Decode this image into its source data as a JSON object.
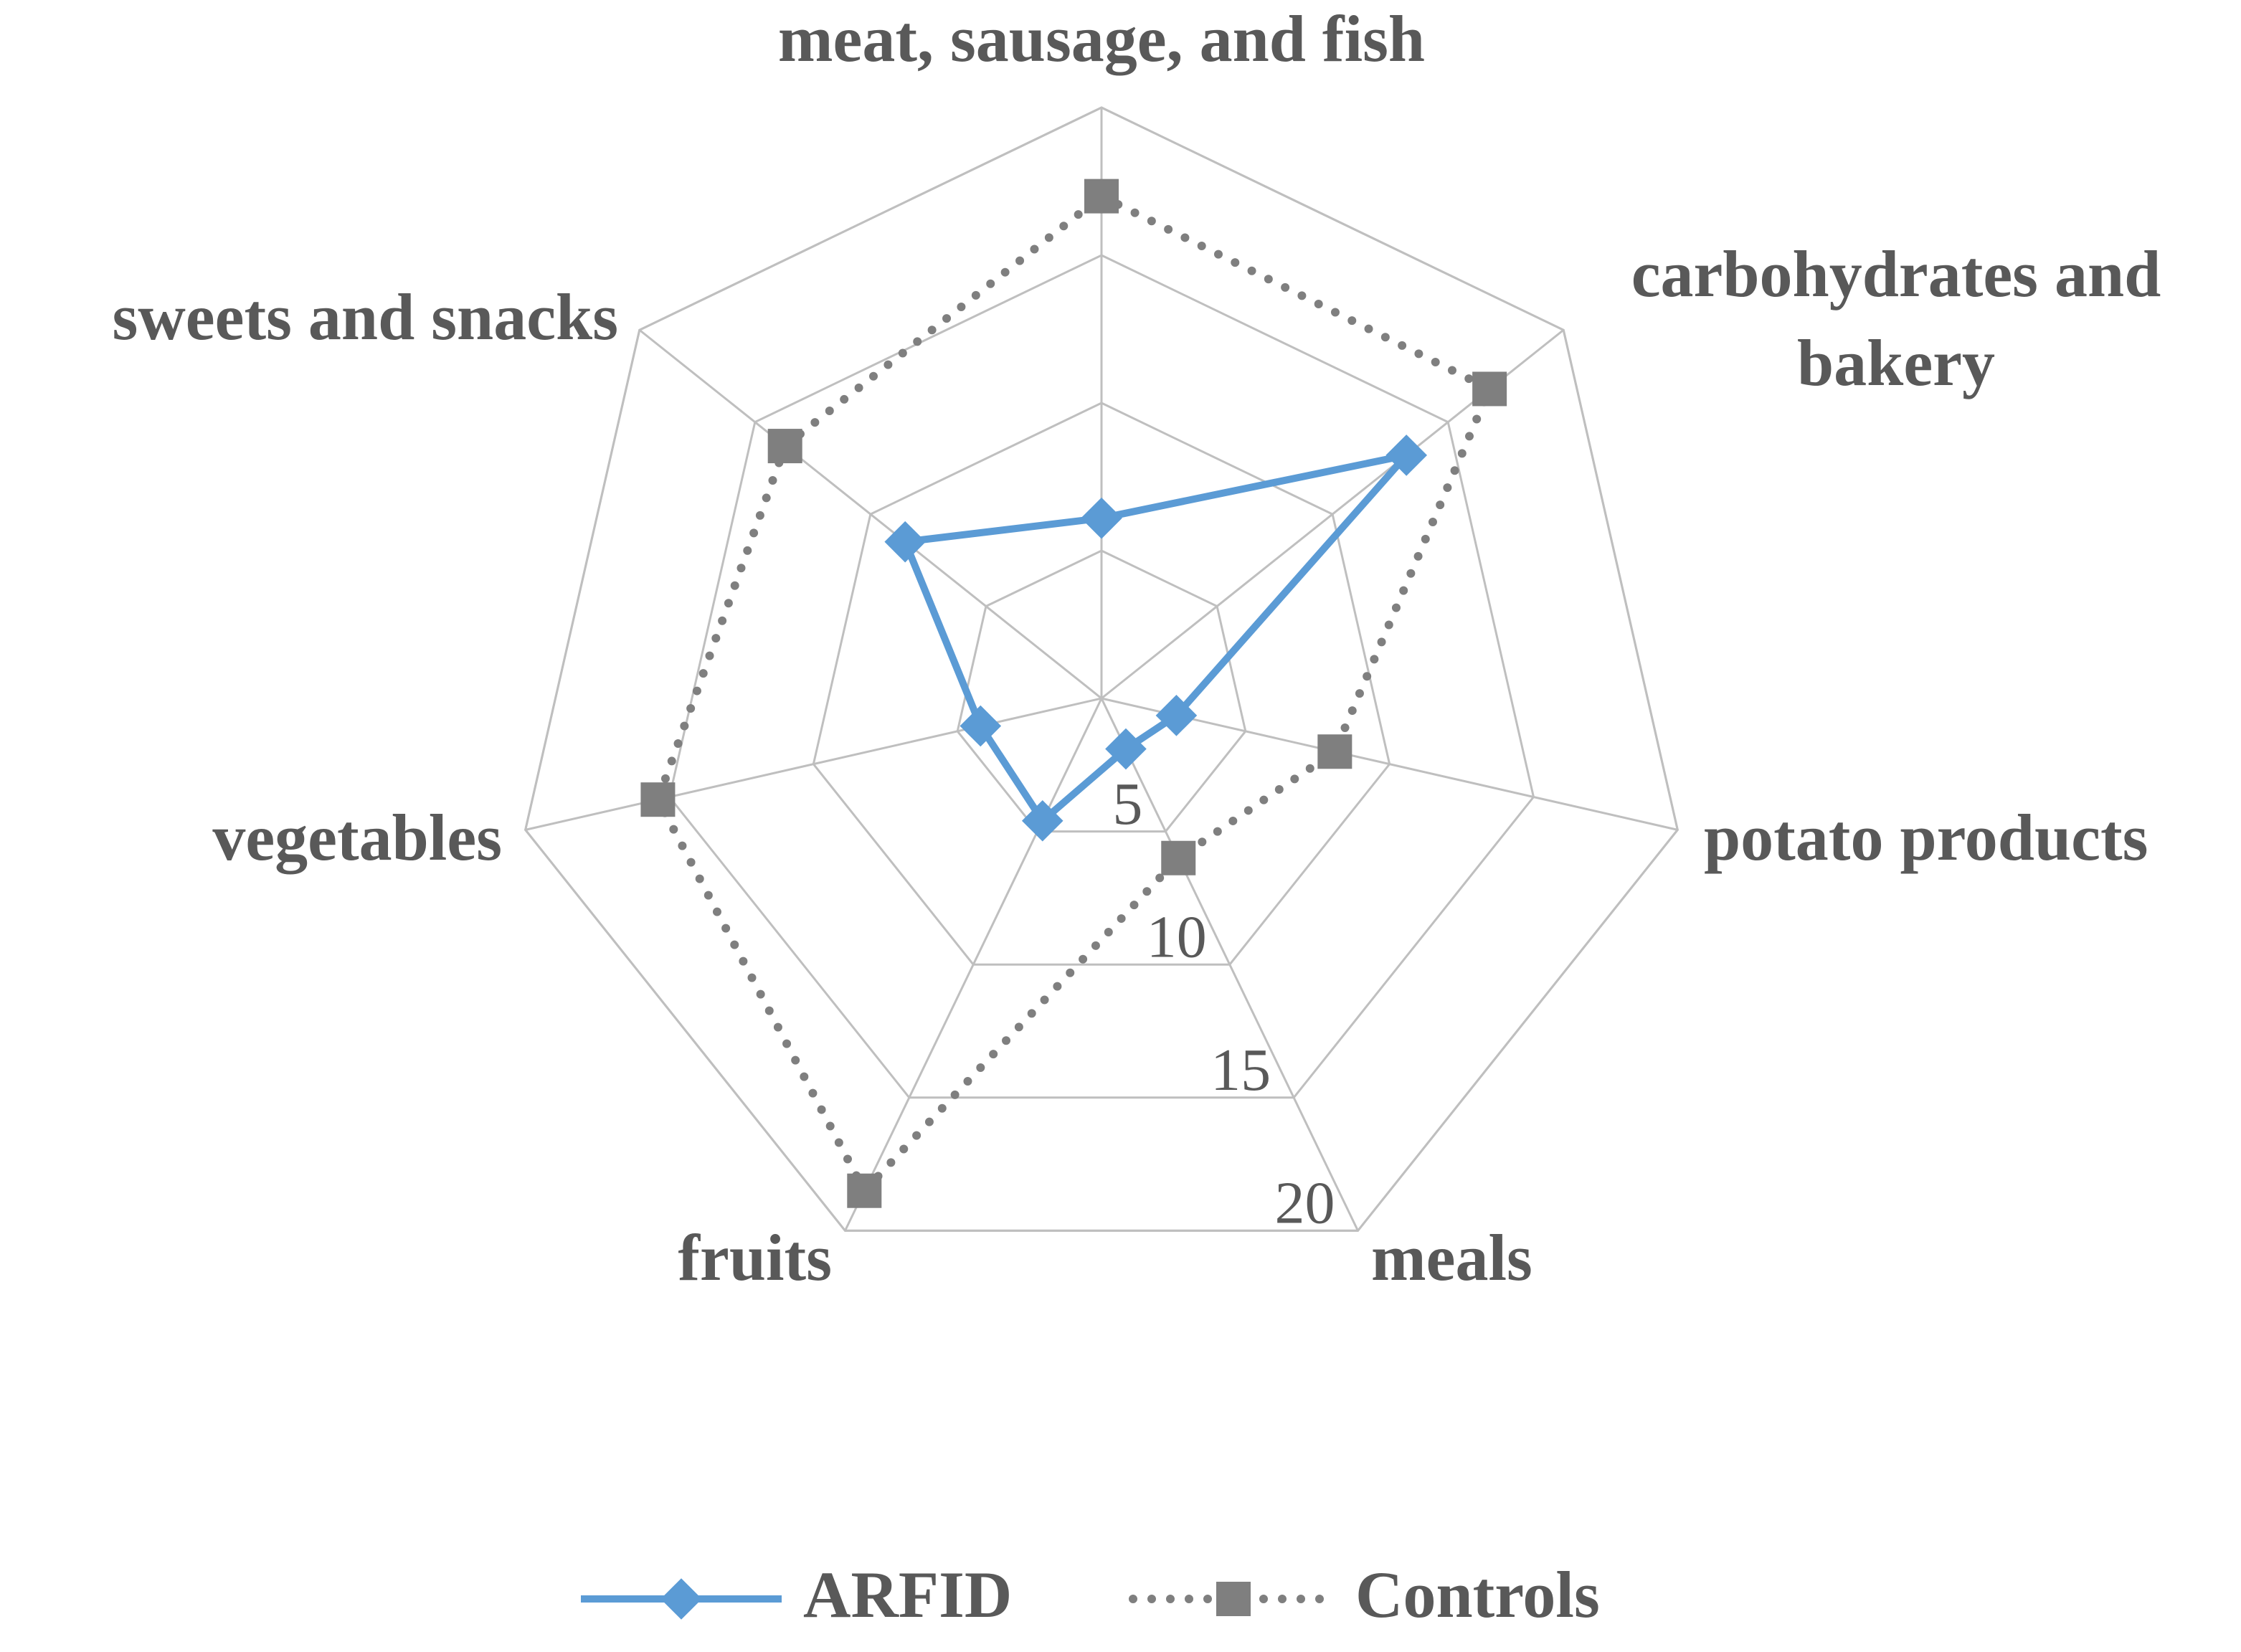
{
  "chart_data": {
    "type": "radar",
    "categories": [
      "meat, sausage, and fish",
      "carbohydrates and bakery",
      "potato products",
      "meals",
      "fruits",
      "vegetables",
      "sweets and snacks"
    ],
    "series": [
      {
        "name": "ARFID",
        "color": "#5b9bd5",
        "line_style": "solid",
        "marker": "diamond",
        "values": [
          6.1,
          13.2,
          2.6,
          1.9,
          4.6,
          4.2,
          8.5
        ]
      },
      {
        "name": "Controls",
        "color": "#7f7f7f",
        "line_style": "dotted",
        "marker": "square",
        "values": [
          17,
          16.8,
          8.1,
          6,
          18.5,
          15.4,
          13.7
        ]
      }
    ],
    "rlim": [
      0,
      20
    ],
    "rticks": [
      5,
      10,
      15,
      20
    ],
    "grid": true,
    "legend": "bottom"
  }
}
